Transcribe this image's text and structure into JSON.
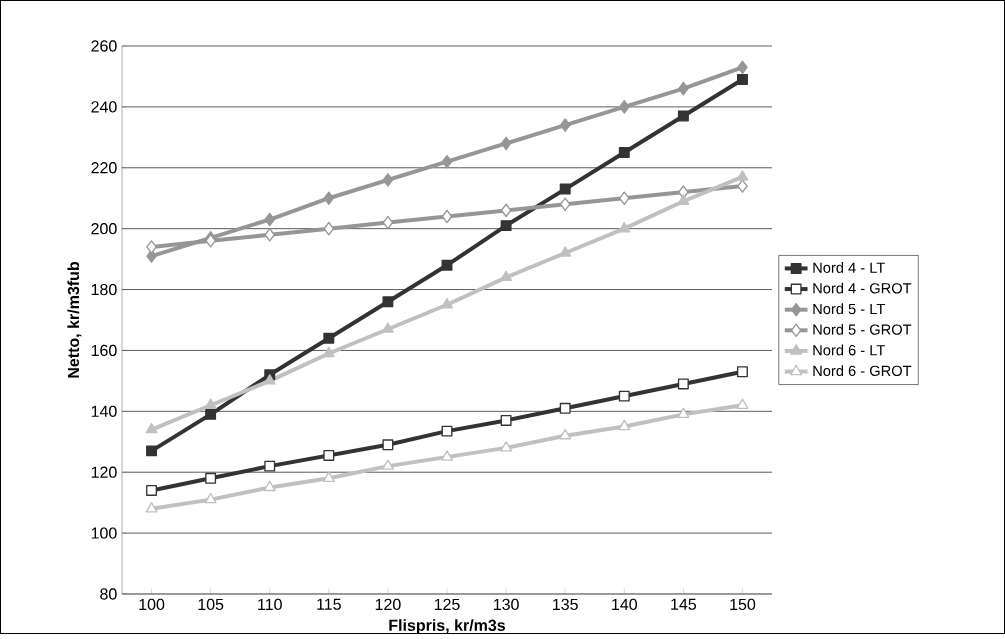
{
  "chart_data": {
    "type": "line",
    "xlabel": "Flispris, kr/m3s",
    "ylabel": "Netto, kr/m3fub",
    "categories": [
      "100",
      "105",
      "110",
      "115",
      "120",
      "125",
      "130",
      "135",
      "140",
      "145",
      "150"
    ],
    "ylim": [
      80,
      260
    ],
    "yticks": [
      80,
      100,
      120,
      140,
      160,
      180,
      200,
      220,
      240,
      260
    ],
    "grid": "y",
    "legend": "right",
    "line_style": "solid",
    "series": [
      {
        "name": "Nord 4 - LT",
        "color": "#333333",
        "marker": "square",
        "values": [
          127,
          139,
          152,
          164,
          176,
          188,
          201,
          213,
          225,
          237,
          249
        ]
      },
      {
        "name": "Nord 4 - GROT",
        "color": "#333333",
        "marker": "square",
        "values": [
          114,
          118,
          122,
          125.5,
          129,
          133.5,
          137,
          141,
          145,
          149,
          153
        ]
      },
      {
        "name": "Nord 5 - LT",
        "color": "#969696",
        "marker": "diamond",
        "values": [
          191,
          197,
          203,
          210,
          216,
          222,
          228,
          234,
          240,
          246,
          253
        ]
      },
      {
        "name": "Nord 5 - GROT",
        "color": "#969696",
        "marker": "diamond",
        "values": [
          194,
          196,
          198,
          200,
          202,
          204,
          206,
          208,
          210,
          212,
          214
        ]
      },
      {
        "name": "Nord 6 - LT",
        "color": "#c0c0c0",
        "marker": "triangle",
        "values": [
          134,
          142,
          150,
          159,
          167,
          175,
          184,
          192,
          200,
          209,
          217
        ]
      },
      {
        "name": "Nord 6 - GROT",
        "color": "#c0c0c0",
        "marker": "triangle",
        "values": [
          108,
          111,
          115,
          118,
          122,
          125,
          128,
          132,
          135,
          139,
          142
        ]
      }
    ]
  }
}
